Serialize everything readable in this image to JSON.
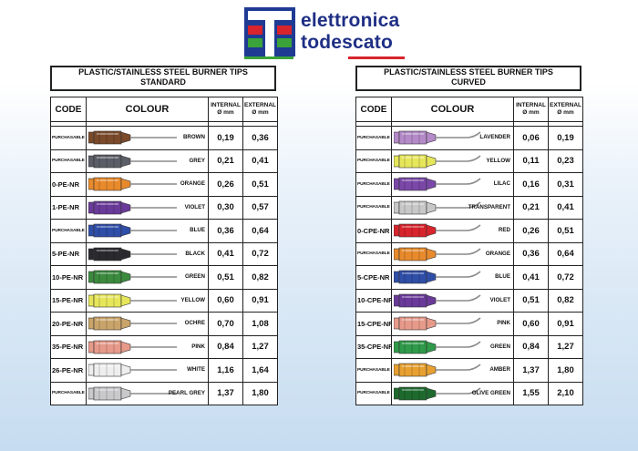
{
  "brand": {
    "line1": "elettronica",
    "line2": "todescato"
  },
  "tables": [
    {
      "title_line1": "PLASTIC/STAINLESS STEEL BURNER TIPS",
      "title_line2": "STANDARD",
      "headers": {
        "code": "CODE",
        "colour": "COLOUR",
        "internal_line1": "INTERNAL",
        "internal_line2": "Ø mm",
        "external_line1": "EXTERNAL",
        "external_line2": "Ø mm"
      },
      "rows": [
        {
          "code": "PURCHASABLE",
          "colour": "BROWN",
          "hex": "#7a4a2a",
          "internal": "0,19",
          "external": "0,36"
        },
        {
          "code": "PURCHASABLE",
          "colour": "GREY",
          "hex": "#5b5e66",
          "internal": "0,21",
          "external": "0,41"
        },
        {
          "code": "0-PE-NR",
          "colour": "ORANGE",
          "hex": "#e88a2c",
          "internal": "0,26",
          "external": "0,51"
        },
        {
          "code": "1-PE-NR",
          "colour": "VIOLET",
          "hex": "#6a3a9a",
          "internal": "0,30",
          "external": "0,57"
        },
        {
          "code": "PURCHASABLE",
          "colour": "BLUE",
          "hex": "#2f4ea8",
          "internal": "0,36",
          "external": "0,64"
        },
        {
          "code": "5-PE-NR",
          "colour": "BLACK",
          "hex": "#2a2a2e",
          "internal": "0,41",
          "external": "0,72"
        },
        {
          "code": "10-PE-NR",
          "colour": "GREEN",
          "hex": "#3b8a3e",
          "internal": "0,51",
          "external": "0,82"
        },
        {
          "code": "15-PE-NR",
          "colour": "YELLOW",
          "hex": "#e6e65a",
          "internal": "0,60",
          "external": "0,91"
        },
        {
          "code": "20-PE-NR",
          "colour": "OCHRE",
          "hex": "#c9a46a",
          "internal": "0,70",
          "external": "1,08"
        },
        {
          "code": "35-PE-NR",
          "colour": "PINK",
          "hex": "#e79a8a",
          "internal": "0,84",
          "external": "1,27"
        },
        {
          "code": "26-PE-NR",
          "colour": "WHITE",
          "hex": "#eeeeee",
          "internal": "1,16",
          "external": "1,64"
        },
        {
          "code": "PURCHASABLE",
          "colour": "PEARL GREY",
          "hex": "#c9c9cc",
          "internal": "1,37",
          "external": "1,80"
        }
      ]
    },
    {
      "title_line1": "PLASTIC/STAINLESS STEEL BURNER TIPS",
      "title_line2": "CURVED",
      "headers": {
        "code": "CODE",
        "colour": "COLOUR",
        "internal_line1": "INTERNAL",
        "internal_line2": "Ø mm",
        "external_line1": "EXTERNAL",
        "external_line2": "Ø mm"
      },
      "rows": [
        {
          "code": "PURCHASABLE",
          "colour": "LAVENDER",
          "hex": "#b48ac8",
          "internal": "0,06",
          "external": "0,19"
        },
        {
          "code": "PURCHASABLE",
          "colour": "YELLOW",
          "hex": "#e6e65a",
          "internal": "0,11",
          "external": "0,23"
        },
        {
          "code": "PURCHASABLE",
          "colour": "LILAC",
          "hex": "#7a48a8",
          "internal": "0,16",
          "external": "0,31"
        },
        {
          "code": "PURCHASABLE",
          "colour": "TRANSPARENT",
          "hex": "#c8c8c8",
          "internal": "0,21",
          "external": "0,41"
        },
        {
          "code": "0-CPE-NR",
          "colour": "RED",
          "hex": "#d8242c",
          "internal": "0,26",
          "external": "0,51"
        },
        {
          "code": "PURCHASABLE",
          "colour": "ORANGE",
          "hex": "#e88a2c",
          "internal": "0,36",
          "external": "0,64"
        },
        {
          "code": "5-CPE-NR",
          "colour": "BLUE",
          "hex": "#2f4ea8",
          "internal": "0,41",
          "external": "0,72"
        },
        {
          "code": "10-CPE-NR",
          "colour": "VIOLET",
          "hex": "#6a3a9a",
          "internal": "0,51",
          "external": "0,82"
        },
        {
          "code": "15-CPE-NR",
          "colour": "PINK",
          "hex": "#e79a8a",
          "internal": "0,60",
          "external": "0,91"
        },
        {
          "code": "35-CPE-NR",
          "colour": "GREEN",
          "hex": "#2f9a4a",
          "internal": "0,84",
          "external": "1,27"
        },
        {
          "code": "PURCHASABLE",
          "colour": "AMBER",
          "hex": "#e8a030",
          "internal": "1,37",
          "external": "1,80"
        },
        {
          "code": "PURCHASABLE",
          "colour": "OLIVE GREEN",
          "hex": "#1e6a2e",
          "internal": "1,55",
          "external": "2,10"
        }
      ]
    }
  ]
}
